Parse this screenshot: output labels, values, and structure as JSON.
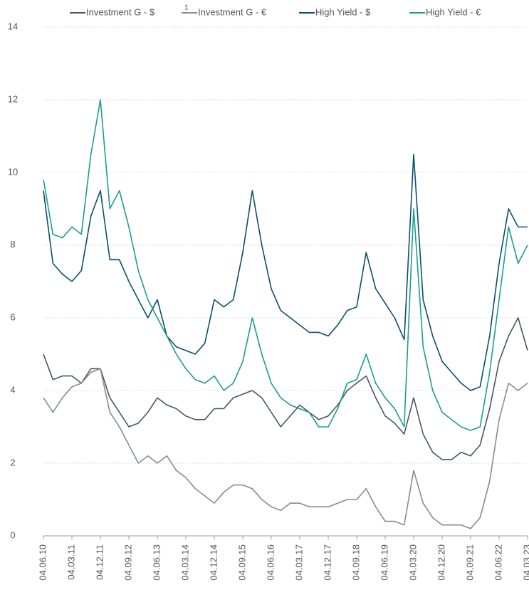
{
  "chart_data": {
    "type": "line",
    "categories": [
      "04.06.10",
      null,
      null,
      "04.03.11",
      null,
      null,
      "04.12.11",
      null,
      null,
      "04.09.12",
      null,
      null,
      "04.06.13",
      null,
      null,
      "04.03.14",
      null,
      null,
      "04.12.14",
      null,
      null,
      "04.09.15",
      null,
      null,
      "04.06.16",
      null,
      null,
      "04.03.17",
      null,
      null,
      "04.12.17",
      null,
      null,
      "04.09.18",
      null,
      null,
      "04.06.19",
      null,
      null,
      "04.03.20",
      null,
      null,
      "04.12.20",
      null,
      null,
      "04.09.21",
      null,
      null,
      "04.06.22",
      null,
      null,
      "04.03.23"
    ],
    "legend_note": "1",
    "series": [
      {
        "name": "Investment G - $",
        "color": "#4a5560",
        "values": [
          5.0,
          4.3,
          4.4,
          4.4,
          4.2,
          4.6,
          4.6,
          3.8,
          3.4,
          3.0,
          3.1,
          3.4,
          3.8,
          3.6,
          3.5,
          3.3,
          3.2,
          3.2,
          3.5,
          3.5,
          3.8,
          3.9,
          4.0,
          3.8,
          3.4,
          3.0,
          3.3,
          3.6,
          3.4,
          3.2,
          3.3,
          3.6,
          4.0,
          4.2,
          4.4,
          3.8,
          3.3,
          3.1,
          2.8,
          3.8,
          2.8,
          2.3,
          2.1,
          2.1,
          2.3,
          2.2,
          2.5,
          3.5,
          4.8,
          5.5,
          6.0,
          5.1
        ]
      },
      {
        "name": "Investment G - €",
        "color": "#858c93",
        "values": [
          3.8,
          3.4,
          3.8,
          4.1,
          4.2,
          4.5,
          4.6,
          3.4,
          3.0,
          2.5,
          2.0,
          2.2,
          2.0,
          2.2,
          1.8,
          1.6,
          1.3,
          1.1,
          0.9,
          1.2,
          1.4,
          1.4,
          1.3,
          1.0,
          0.8,
          0.7,
          0.9,
          0.9,
          0.8,
          0.8,
          0.8,
          0.9,
          1.0,
          1.0,
          1.3,
          0.8,
          0.4,
          0.4,
          0.3,
          1.8,
          0.9,
          0.5,
          0.3,
          0.3,
          0.3,
          0.2,
          0.5,
          1.5,
          3.2,
          4.2,
          4.0,
          4.2
        ]
      },
      {
        "name": "High Yield - $",
        "color": "#0b4f6c",
        "values": [
          9.5,
          7.5,
          7.2,
          7.0,
          7.3,
          8.8,
          9.5,
          7.6,
          7.6,
          7.0,
          6.5,
          6.0,
          6.5,
          5.5,
          5.2,
          5.1,
          5.0,
          5.3,
          6.5,
          6.3,
          6.5,
          7.8,
          9.5,
          8.0,
          6.8,
          6.2,
          6.0,
          5.8,
          5.6,
          5.6,
          5.5,
          5.8,
          6.2,
          6.3,
          7.8,
          6.8,
          6.4,
          6.0,
          5.4,
          10.5,
          6.5,
          5.5,
          4.8,
          4.5,
          4.2,
          4.0,
          4.1,
          5.5,
          7.5,
          9.0,
          8.5,
          8.5
        ]
      },
      {
        "name": "High Yield - €",
        "color": "#1a9e8f",
        "values": [
          9.8,
          8.3,
          8.2,
          8.5,
          8.3,
          10.5,
          12.0,
          9.0,
          9.5,
          8.5,
          7.3,
          6.5,
          6.0,
          5.5,
          5.0,
          4.6,
          4.3,
          4.2,
          4.4,
          4.0,
          4.2,
          4.8,
          6.0,
          5.0,
          4.2,
          3.8,
          3.6,
          3.5,
          3.4,
          3.0,
          3.0,
          3.5,
          4.2,
          4.3,
          5.0,
          4.2,
          3.8,
          3.5,
          3.0,
          9.0,
          5.2,
          4.0,
          3.4,
          3.2,
          3.0,
          2.9,
          3.0,
          4.5,
          6.5,
          8.5,
          7.5,
          8.0
        ]
      }
    ],
    "ylim": [
      0,
      14
    ],
    "yticks": [
      0,
      2,
      4,
      6,
      8,
      10,
      12,
      14
    ],
    "grid": true,
    "legend": "top"
  }
}
